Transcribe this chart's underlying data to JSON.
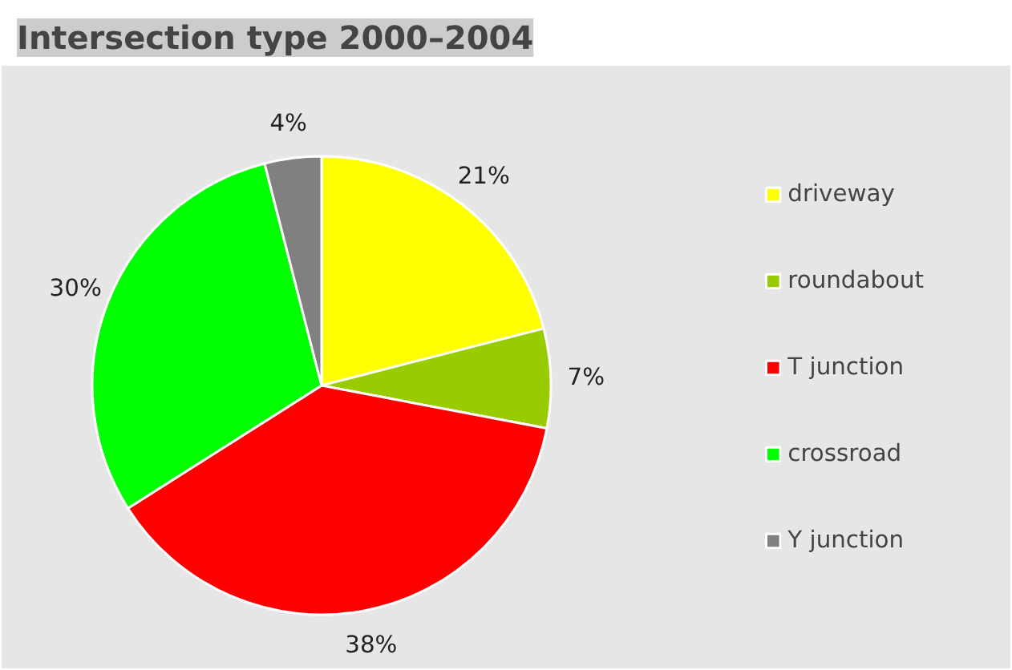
{
  "chart_data": {
    "type": "pie",
    "title": "Intersection type 2000–2004",
    "categories": [
      "driveway",
      "roundabout",
      "T junction",
      "crossroad",
      "Y junction"
    ],
    "values": [
      21,
      7,
      38,
      30,
      4
    ],
    "colors": [
      "#ffff00",
      "#99cc00",
      "#ff0000",
      "#00ff00",
      "#808080"
    ],
    "value_labels": [
      "21%",
      "7%",
      "38%",
      "30%",
      "4%"
    ],
    "legend": "right"
  }
}
